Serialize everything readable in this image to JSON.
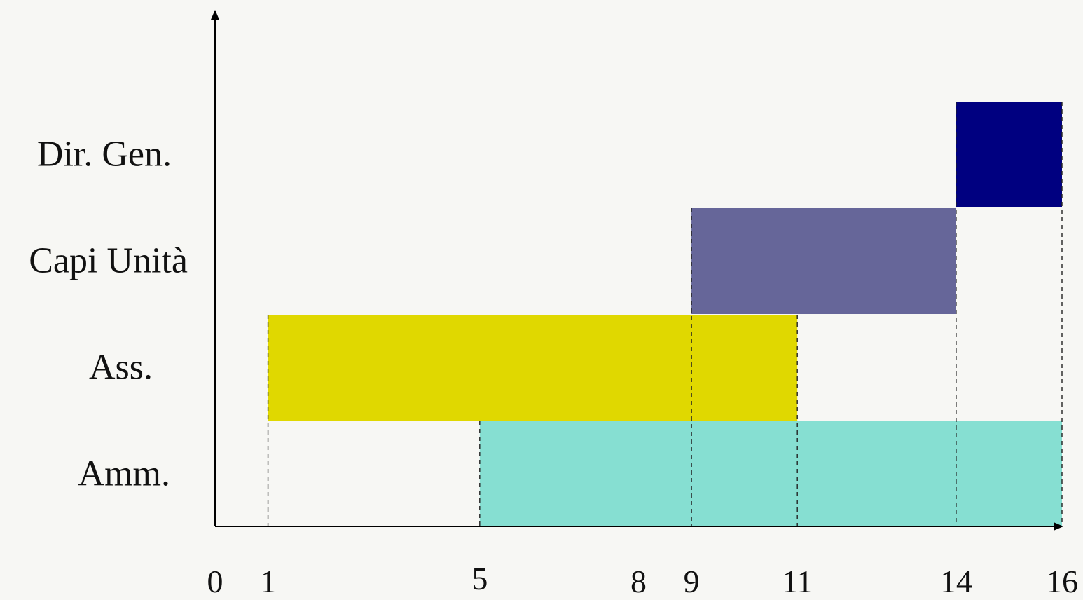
{
  "chart_data": {
    "type": "bar",
    "orientation": "horizontal-range",
    "categories": [
      "Dir. Gen.",
      "Capi Unità",
      "Ass.",
      "Amm."
    ],
    "bars": [
      {
        "category": "Dir. Gen.",
        "start": 14,
        "end": 16,
        "color": "#000080"
      },
      {
        "category": "Capi Unità",
        "start": 9,
        "end": 14,
        "color": "#666699"
      },
      {
        "category": "Ass.",
        "start": 1,
        "end": 11,
        "color": "#E0D800"
      },
      {
        "category": "Amm.",
        "start": 5,
        "end": 16,
        "color": "#86DFD2"
      }
    ],
    "x_ticks": [
      0,
      1,
      5,
      8,
      9,
      11,
      14,
      16
    ],
    "xlim": [
      0,
      16
    ],
    "dashed_guides": [
      1,
      5,
      9,
      11,
      14,
      16
    ],
    "grid": false,
    "legend": "none",
    "title": "",
    "xlabel": "",
    "ylabel": ""
  }
}
